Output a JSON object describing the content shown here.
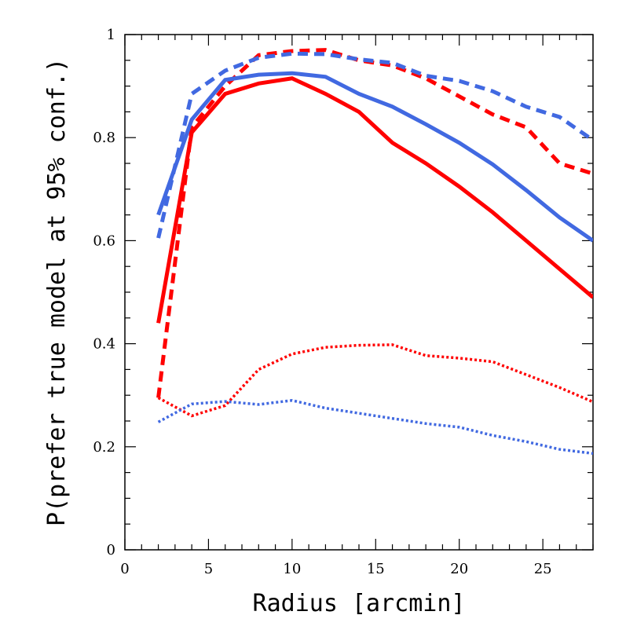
{
  "chart_data": {
    "type": "line",
    "title": "",
    "xlabel": "Radius [arcmin]",
    "ylabel": "P(prefer true model at 95% conf.)",
    "xlim": [
      0,
      28
    ],
    "ylim": [
      0,
      1
    ],
    "xticks": [
      0,
      5,
      10,
      15,
      20,
      25
    ],
    "yticks": [
      0,
      0.2,
      0.4,
      0.6,
      0.8,
      1
    ],
    "ytick_labels": [
      "0",
      "0.2",
      "0.4",
      "0.6",
      "0.8",
      "1"
    ],
    "grid": false,
    "legend": "none",
    "x": [
      2,
      4,
      6,
      8,
      10,
      12,
      14,
      16,
      18,
      20,
      22,
      24,
      26,
      28
    ],
    "series": [
      {
        "color": "#ff0000",
        "style": "solid",
        "values": [
          0.44,
          0.81,
          0.885,
          0.905,
          0.915,
          0.885,
          0.85,
          0.79,
          0.75,
          0.705,
          0.655,
          0.6,
          0.545,
          0.49
        ]
      },
      {
        "color": "#ff0000",
        "style": "dashed",
        "values": [
          0.295,
          0.82,
          0.9,
          0.96,
          0.968,
          0.97,
          0.95,
          0.94,
          0.915,
          0.88,
          0.845,
          0.82,
          0.75,
          0.73
        ]
      },
      {
        "color": "#ff0000",
        "style": "dotted",
        "values": [
          0.295,
          0.26,
          0.28,
          0.35,
          0.38,
          0.393,
          0.397,
          0.398,
          0.377,
          0.372,
          0.365,
          0.34,
          0.315,
          0.287
        ]
      },
      {
        "color": "#4169e1",
        "style": "solid",
        "values": [
          0.65,
          0.835,
          0.912,
          0.922,
          0.925,
          0.918,
          0.885,
          0.86,
          0.826,
          0.79,
          0.748,
          0.698,
          0.645,
          0.6
        ]
      },
      {
        "color": "#4169e1",
        "style": "dashed",
        "values": [
          0.605,
          0.885,
          0.93,
          0.955,
          0.963,
          0.962,
          0.952,
          0.945,
          0.92,
          0.91,
          0.89,
          0.86,
          0.84,
          0.795
        ]
      },
      {
        "color": "#4169e1",
        "style": "dotted",
        "values": [
          0.248,
          0.283,
          0.288,
          0.282,
          0.29,
          0.275,
          0.265,
          0.255,
          0.245,
          0.238,
          0.222,
          0.21,
          0.195,
          0.187
        ]
      }
    ]
  }
}
